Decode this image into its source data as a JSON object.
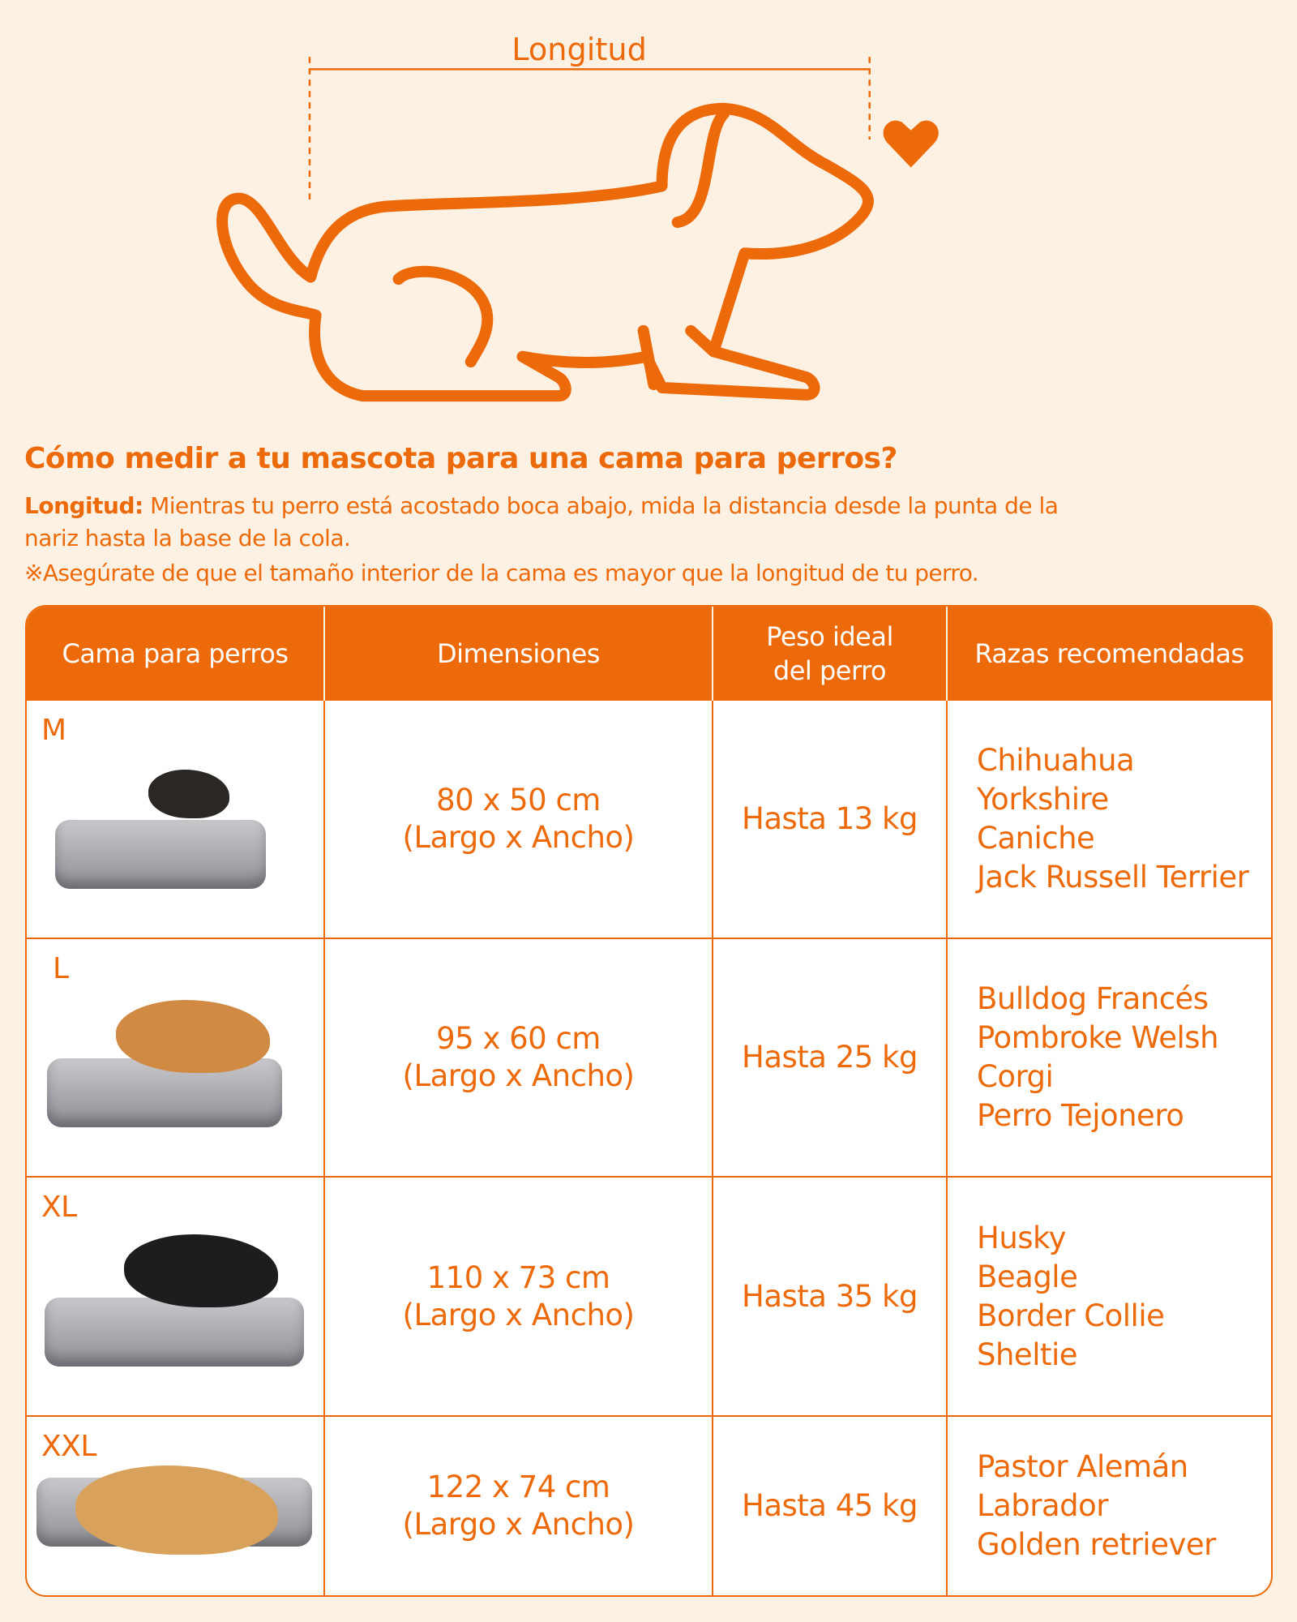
{
  "illustration": {
    "length_label": "Longitud",
    "icons": [
      "dog-outline-icon",
      "heart-icon"
    ],
    "accent": "#ec6a0a",
    "background": "#fdf1e3"
  },
  "heading": "Cómo medir a tu mascota para una cama para perros?",
  "description": {
    "label": "Longitud:",
    "text": " Mientras tu perro está acostado boca abajo, mida la distancia desde la punta de la nariz hasta la base de la cola."
  },
  "note": "※Asegúrate de que el tamaño interior de la cama es mayor que la longitud de tu perro.",
  "table": {
    "headers": [
      "Cama para perros",
      "Dimensiones",
      "Peso ideal del perro",
      "Razas recomendadas"
    ],
    "rows": [
      {
        "size": "M",
        "dims": "80 x 50 cm",
        "dims_note": "(Largo x Ancho)",
        "weight": "Hasta 13 kg",
        "breeds": [
          "Chihuahua",
          "Yorkshire",
          "Caniche",
          "Jack Russell Terrier"
        ]
      },
      {
        "size": "L",
        "dims": "95 x 60 cm",
        "dims_note": "(Largo x Ancho)",
        "weight": "Hasta 25 kg",
        "breeds": [
          "Bulldog Francés",
          "Pombroke Welsh",
          "Corgi",
          "Perro Tejonero"
        ]
      },
      {
        "size": "XL",
        "dims": "110 x 73 cm",
        "dims_note": "(Largo x Ancho)",
        "weight": "Hasta 35 kg",
        "breeds": [
          "Husky",
          "Beagle",
          "Border Collie",
          "Sheltie"
        ]
      },
      {
        "size": "XXL",
        "dims": "122 x 74 cm",
        "dims_note": "(Largo x Ancho)",
        "weight": "Hasta 45 kg",
        "breeds": [
          "Pastor Alemán",
          "Labrador",
          "Golden retriever"
        ]
      }
    ]
  }
}
